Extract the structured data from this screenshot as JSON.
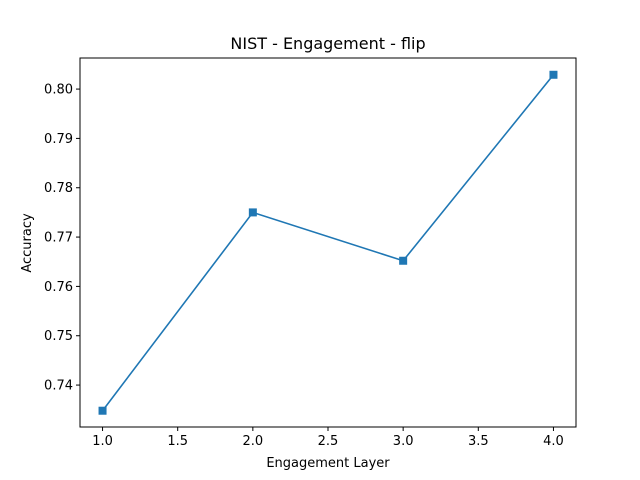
{
  "chart_data": {
    "type": "line",
    "title": "NIST - Engagement - flip",
    "xlabel": "Engagement Layer",
    "ylabel": "Accuracy",
    "xlim": [
      0.85,
      4.15
    ],
    "ylim": [
      0.7315,
      0.8063
    ],
    "x_ticks": [
      1.0,
      1.5,
      2.0,
      2.5,
      3.0,
      3.5,
      4.0
    ],
    "x_tick_labels": [
      "1.0",
      "1.5",
      "2.0",
      "2.5",
      "3.0",
      "3.5",
      "4.0"
    ],
    "y_ticks": [
      0.74,
      0.75,
      0.76,
      0.77,
      0.78,
      0.79,
      0.8
    ],
    "y_tick_labels": [
      "0.74",
      "0.75",
      "0.76",
      "0.77",
      "0.78",
      "0.79",
      "0.80"
    ],
    "grid": false,
    "series": [
      {
        "color": "#1f77b4",
        "marker": "square",
        "x": [
          1.0,
          2.0,
          3.0,
          4.0
        ],
        "y": [
          0.7348,
          0.775,
          0.7652,
          0.8029
        ]
      }
    ]
  }
}
